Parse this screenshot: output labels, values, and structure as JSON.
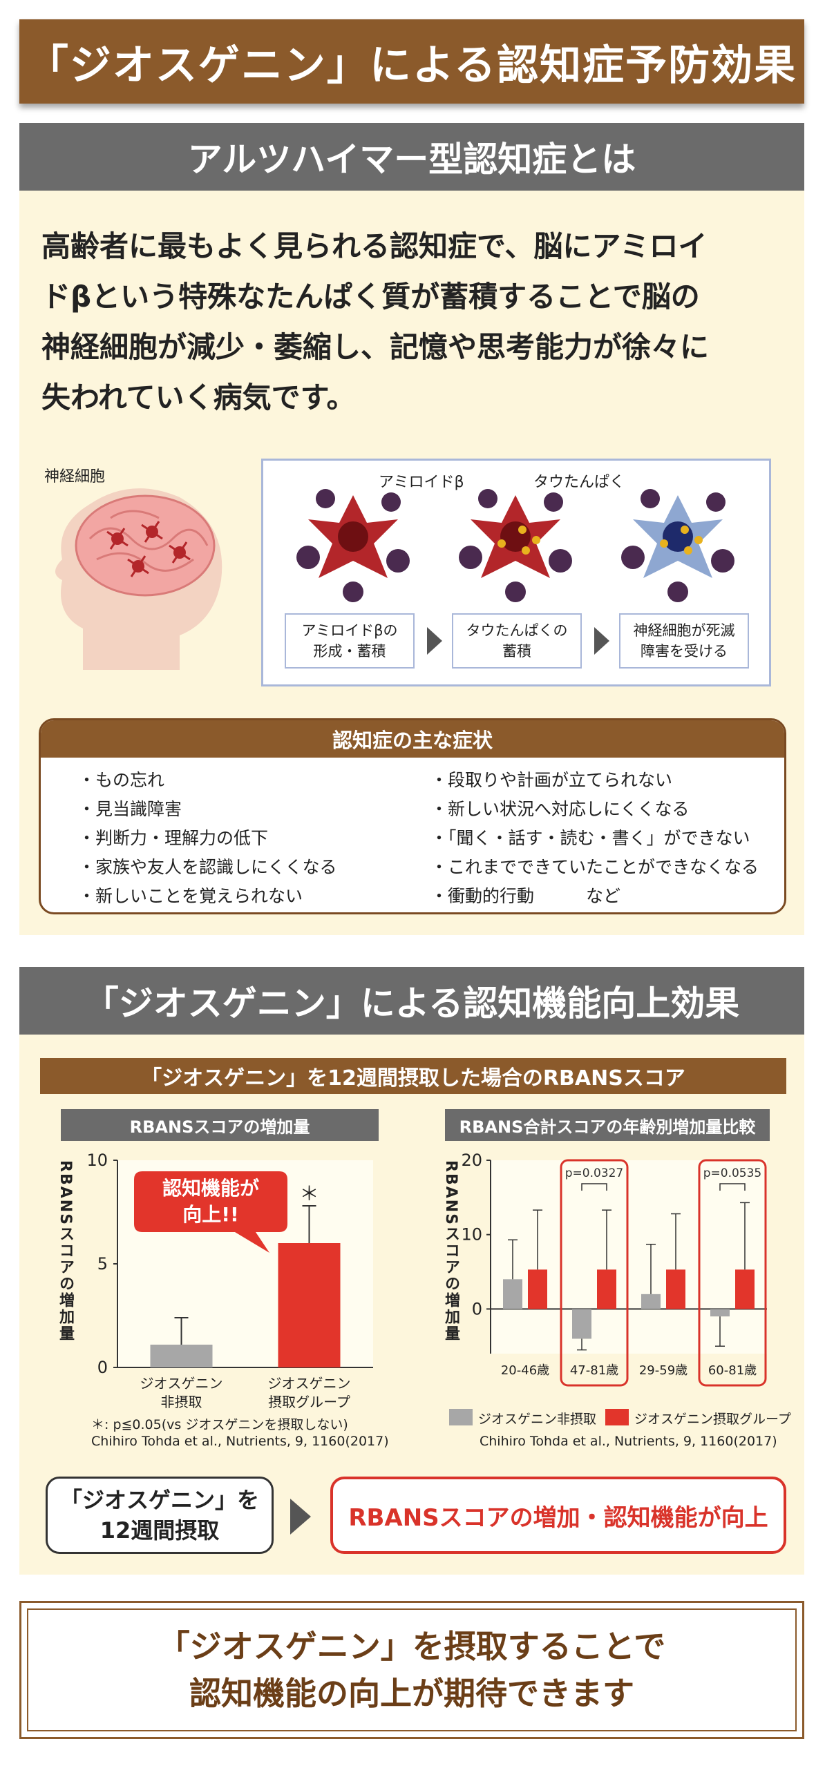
{
  "header": {
    "title": "「ジオスゲニン」による認知症予防効果"
  },
  "section1": {
    "heading": "アルツハイマー型認知症とは",
    "lead_lines": [
      "高齢者に最もよく見られる認知症で、脳にアミロイ",
      "ドβという特殊なたんぱく質が蓄積することで脳の",
      "神経細胞が減少・萎縮し、記憶や思考能力が徐々に",
      "失われていく病気です。"
    ],
    "illustration": {
      "nerve_label": "神経細胞",
      "amyloid_label": "アミロイドβ",
      "tau_label": "タウたんぱく",
      "steps": [
        {
          "line1": "アミロイドβの",
          "line2": "形成・蓄積"
        },
        {
          "line1": "タウたんぱくの",
          "line2": "蓄積"
        },
        {
          "line1": "神経細胞が死滅",
          "line2": "障害を受ける"
        }
      ]
    },
    "symptoms": {
      "title": "認知症の主な症状",
      "left": [
        "・もの忘れ",
        "・見当識障害",
        "・判断力・理解力の低下",
        "・家族や友人を認識しにくくなる",
        "・新しいことを覚えられない"
      ],
      "right": [
        "・段取りや計画が立てられない",
        "・新しい状況へ対応しにくくなる",
        "・「聞く・話す・読む・書く」ができない",
        "・これまでできていたことができなくなる",
        "・衝動的行動　　　など"
      ]
    }
  },
  "section2": {
    "heading": "「ジオスゲニン」による認知機能向上効果",
    "subheading": "「ジオスゲニン」を12週間摂取した場合のRBANSスコア",
    "callout_line1": "認知機能が",
    "callout_line2": "向上!!",
    "left_note": "＊: p≦0.05(vs ジオスゲニンを摂取しない)",
    "left_citation": "Chihiro Tohda et al., Nutrients, 9, 1160(2017)",
    "right_citation": "Chihiro Tohda et al., Nutrients, 9, 1160(2017)",
    "input_line1": "「ジオスゲニン」を",
    "input_line2": "12週間摂取",
    "result": "RBANSスコアの増加・認知機能が向上"
  },
  "conclusion": {
    "line1": "「ジオスゲニン」を摂取することで",
    "line2": "認知機能の向上が期待できます"
  },
  "colors": {
    "brown": "#8b5a2b",
    "gray": "#6b6b6b",
    "red": "#e2352b",
    "bar_gray": "#a7a7a7",
    "cream": "#fdf6dc"
  },
  "chart_data": [
    {
      "type": "bar",
      "title": "RBANSスコアの増加量",
      "ylabel": "RBANSスコアの増加量",
      "categories": [
        "ジオスゲニン\n非摂取",
        "ジオスゲニン\n摂取グループ"
      ],
      "category_lines": [
        [
          "ジオスゲニン",
          "非摂取"
        ],
        [
          "ジオスゲニン",
          "摂取グループ"
        ]
      ],
      "values": [
        1.1,
        6.0
      ],
      "error": [
        1.3,
        1.8
      ],
      "colors": [
        "#a7a7a7",
        "#e2352b"
      ],
      "significance": [
        "",
        "＊"
      ],
      "ylim": [
        0,
        10
      ],
      "yticks": [
        0,
        5,
        10
      ]
    },
    {
      "type": "bar",
      "title": "RBANS合計スコアの年齢別増加量比較",
      "ylabel": "RBANSスコアの増加量",
      "categories": [
        "20-46歳",
        "47-81歳",
        "29-59歳",
        "60-81歳"
      ],
      "series": [
        {
          "name": "ジオスゲニン非摂取",
          "values": [
            4.0,
            -4.0,
            2.0,
            -1.0
          ],
          "error": [
            5.3,
            1.5,
            6.7,
            4.0
          ],
          "color": "#a7a7a7"
        },
        {
          "name": "ジオスゲニン摂取グループ",
          "values": [
            5.3,
            5.3,
            5.3,
            5.3
          ],
          "error": [
            8.0,
            8.0,
            7.5,
            9.0
          ],
          "color": "#e2352b"
        }
      ],
      "p_values": [
        "",
        "p=0.0327",
        "",
        "p=0.0535"
      ],
      "highlight": [
        false,
        true,
        false,
        true
      ],
      "ylim": [
        -6,
        20
      ],
      "yticks": [
        0,
        10,
        20
      ],
      "legend": "bottom"
    }
  ]
}
